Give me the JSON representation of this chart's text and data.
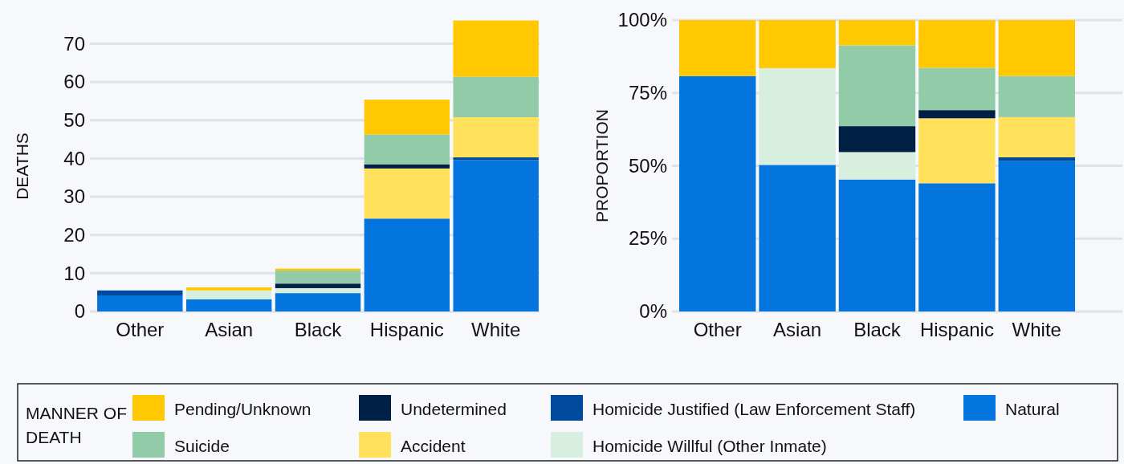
{
  "chart_data": [
    {
      "type": "bar",
      "stacked": true,
      "ylabel": "DEATHS",
      "categories": [
        "Other",
        "Asian",
        "Black",
        "Hispanic",
        "White"
      ],
      "ylim": [
        0,
        76
      ],
      "yticks": [
        0,
        10,
        20,
        30,
        40,
        50,
        60,
        70
      ],
      "grid": "y",
      "legend": "bottom",
      "legend_title": "MANNER OF DEATH",
      "series": [
        {
          "name": "Natural",
          "color": "#0474de",
          "values": [
            4.2,
            3.2,
            4.8,
            24.3,
            39.6
          ]
        },
        {
          "name": "Homicide Justified (Law Enforcement Staff)",
          "color": "#004a9e",
          "values": [
            1.3,
            0,
            0,
            0,
            0.7
          ]
        },
        {
          "name": "Homicide Willful (Other Inmate)",
          "color": "#d8efdf",
          "values": [
            0,
            2.3,
            1.3,
            0,
            0
          ]
        },
        {
          "name": "Accident",
          "color": "#ffe15c",
          "values": [
            0,
            0,
            0,
            13.1,
            10.5
          ]
        },
        {
          "name": "Undetermined",
          "color": "#001f45",
          "values": [
            0,
            0,
            1.2,
            1.1,
            0
          ]
        },
        {
          "name": "Suicide",
          "color": "#92cba8",
          "values": [
            0,
            0,
            3.4,
            7.8,
            10.6
          ]
        },
        {
          "name": "Pending/Unknown",
          "color": "#ffc800",
          "values": [
            0,
            0.8,
            0.5,
            9.1,
            14.7
          ]
        }
      ]
    },
    {
      "type": "bar",
      "stacked": true,
      "ylabel": "PROPORTION",
      "categories": [
        "Other",
        "Asian",
        "Black",
        "Hispanic",
        "White"
      ],
      "ylim": [
        0,
        100
      ],
      "yticks": [
        {
          "value": 0,
          "label": "0%"
        },
        {
          "value": 25,
          "label": "25%"
        },
        {
          "value": 50,
          "label": "50%"
        },
        {
          "value": 75,
          "label": "75%"
        },
        {
          "value": 100,
          "label": "100%"
        }
      ],
      "grid": "y",
      "series": [
        {
          "color": "#0474de",
          "values": [
            80.8,
            50.3,
            45.3,
            44,
            51.6
          ]
        },
        {
          "color": "#004a9e",
          "values": [
            0,
            0,
            0,
            0,
            1.3
          ]
        },
        {
          "color": "#d8efdf",
          "values": [
            0,
            33.2,
            9.4,
            0,
            0
          ]
        },
        {
          "color": "#ffe15c",
          "values": [
            0,
            0,
            0,
            22.3,
            13.8
          ]
        },
        {
          "color": "#001f45",
          "values": [
            0,
            0,
            8.9,
            2.8,
            0
          ]
        },
        {
          "color": "#92cba8",
          "values": [
            0,
            0,
            27.7,
            14.5,
            14.1
          ]
        },
        {
          "color": "#ffc800",
          "values": [
            19.2,
            16.5,
            8.7,
            16.4,
            19.2
          ]
        }
      ]
    }
  ]
}
